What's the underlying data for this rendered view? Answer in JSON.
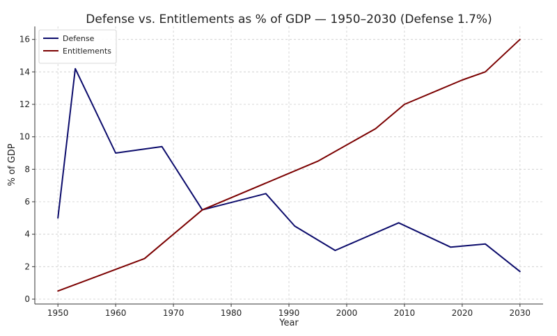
{
  "chart_data": {
    "type": "line",
    "title": "Defense vs. Entitlements as % of GDP — 1950–2030 (Defense 1.7%)",
    "xlabel": "Year",
    "ylabel": "% of GDP",
    "xlim": [
      1946,
      2034
    ],
    "ylim": [
      -0.3,
      16.8
    ],
    "xticks": [
      1950,
      1960,
      1970,
      1980,
      1990,
      2000,
      2010,
      2020,
      2030
    ],
    "yticks": [
      0,
      2,
      4,
      6,
      8,
      10,
      12,
      14,
      16
    ],
    "grid": true,
    "legend_position": "top-left",
    "series": [
      {
        "name": "Defense",
        "color": "#0b0b6b",
        "x": [
          1950,
          1953,
          1960,
          1968,
          1975,
          1986,
          1991,
          1998,
          2009,
          2018,
          2024,
          2030
        ],
        "y": [
          5.0,
          14.2,
          9.0,
          9.4,
          5.5,
          6.5,
          4.5,
          3.0,
          4.7,
          3.2,
          3.4,
          1.7
        ]
      },
      {
        "name": "Entitlements",
        "color": "#7b0000",
        "x": [
          1950,
          1965,
          1975,
          1995,
          2005,
          2010,
          2020,
          2024,
          2030
        ],
        "y": [
          0.5,
          2.5,
          5.5,
          8.5,
          10.5,
          12.0,
          13.5,
          14.0,
          16.0
        ]
      }
    ]
  }
}
